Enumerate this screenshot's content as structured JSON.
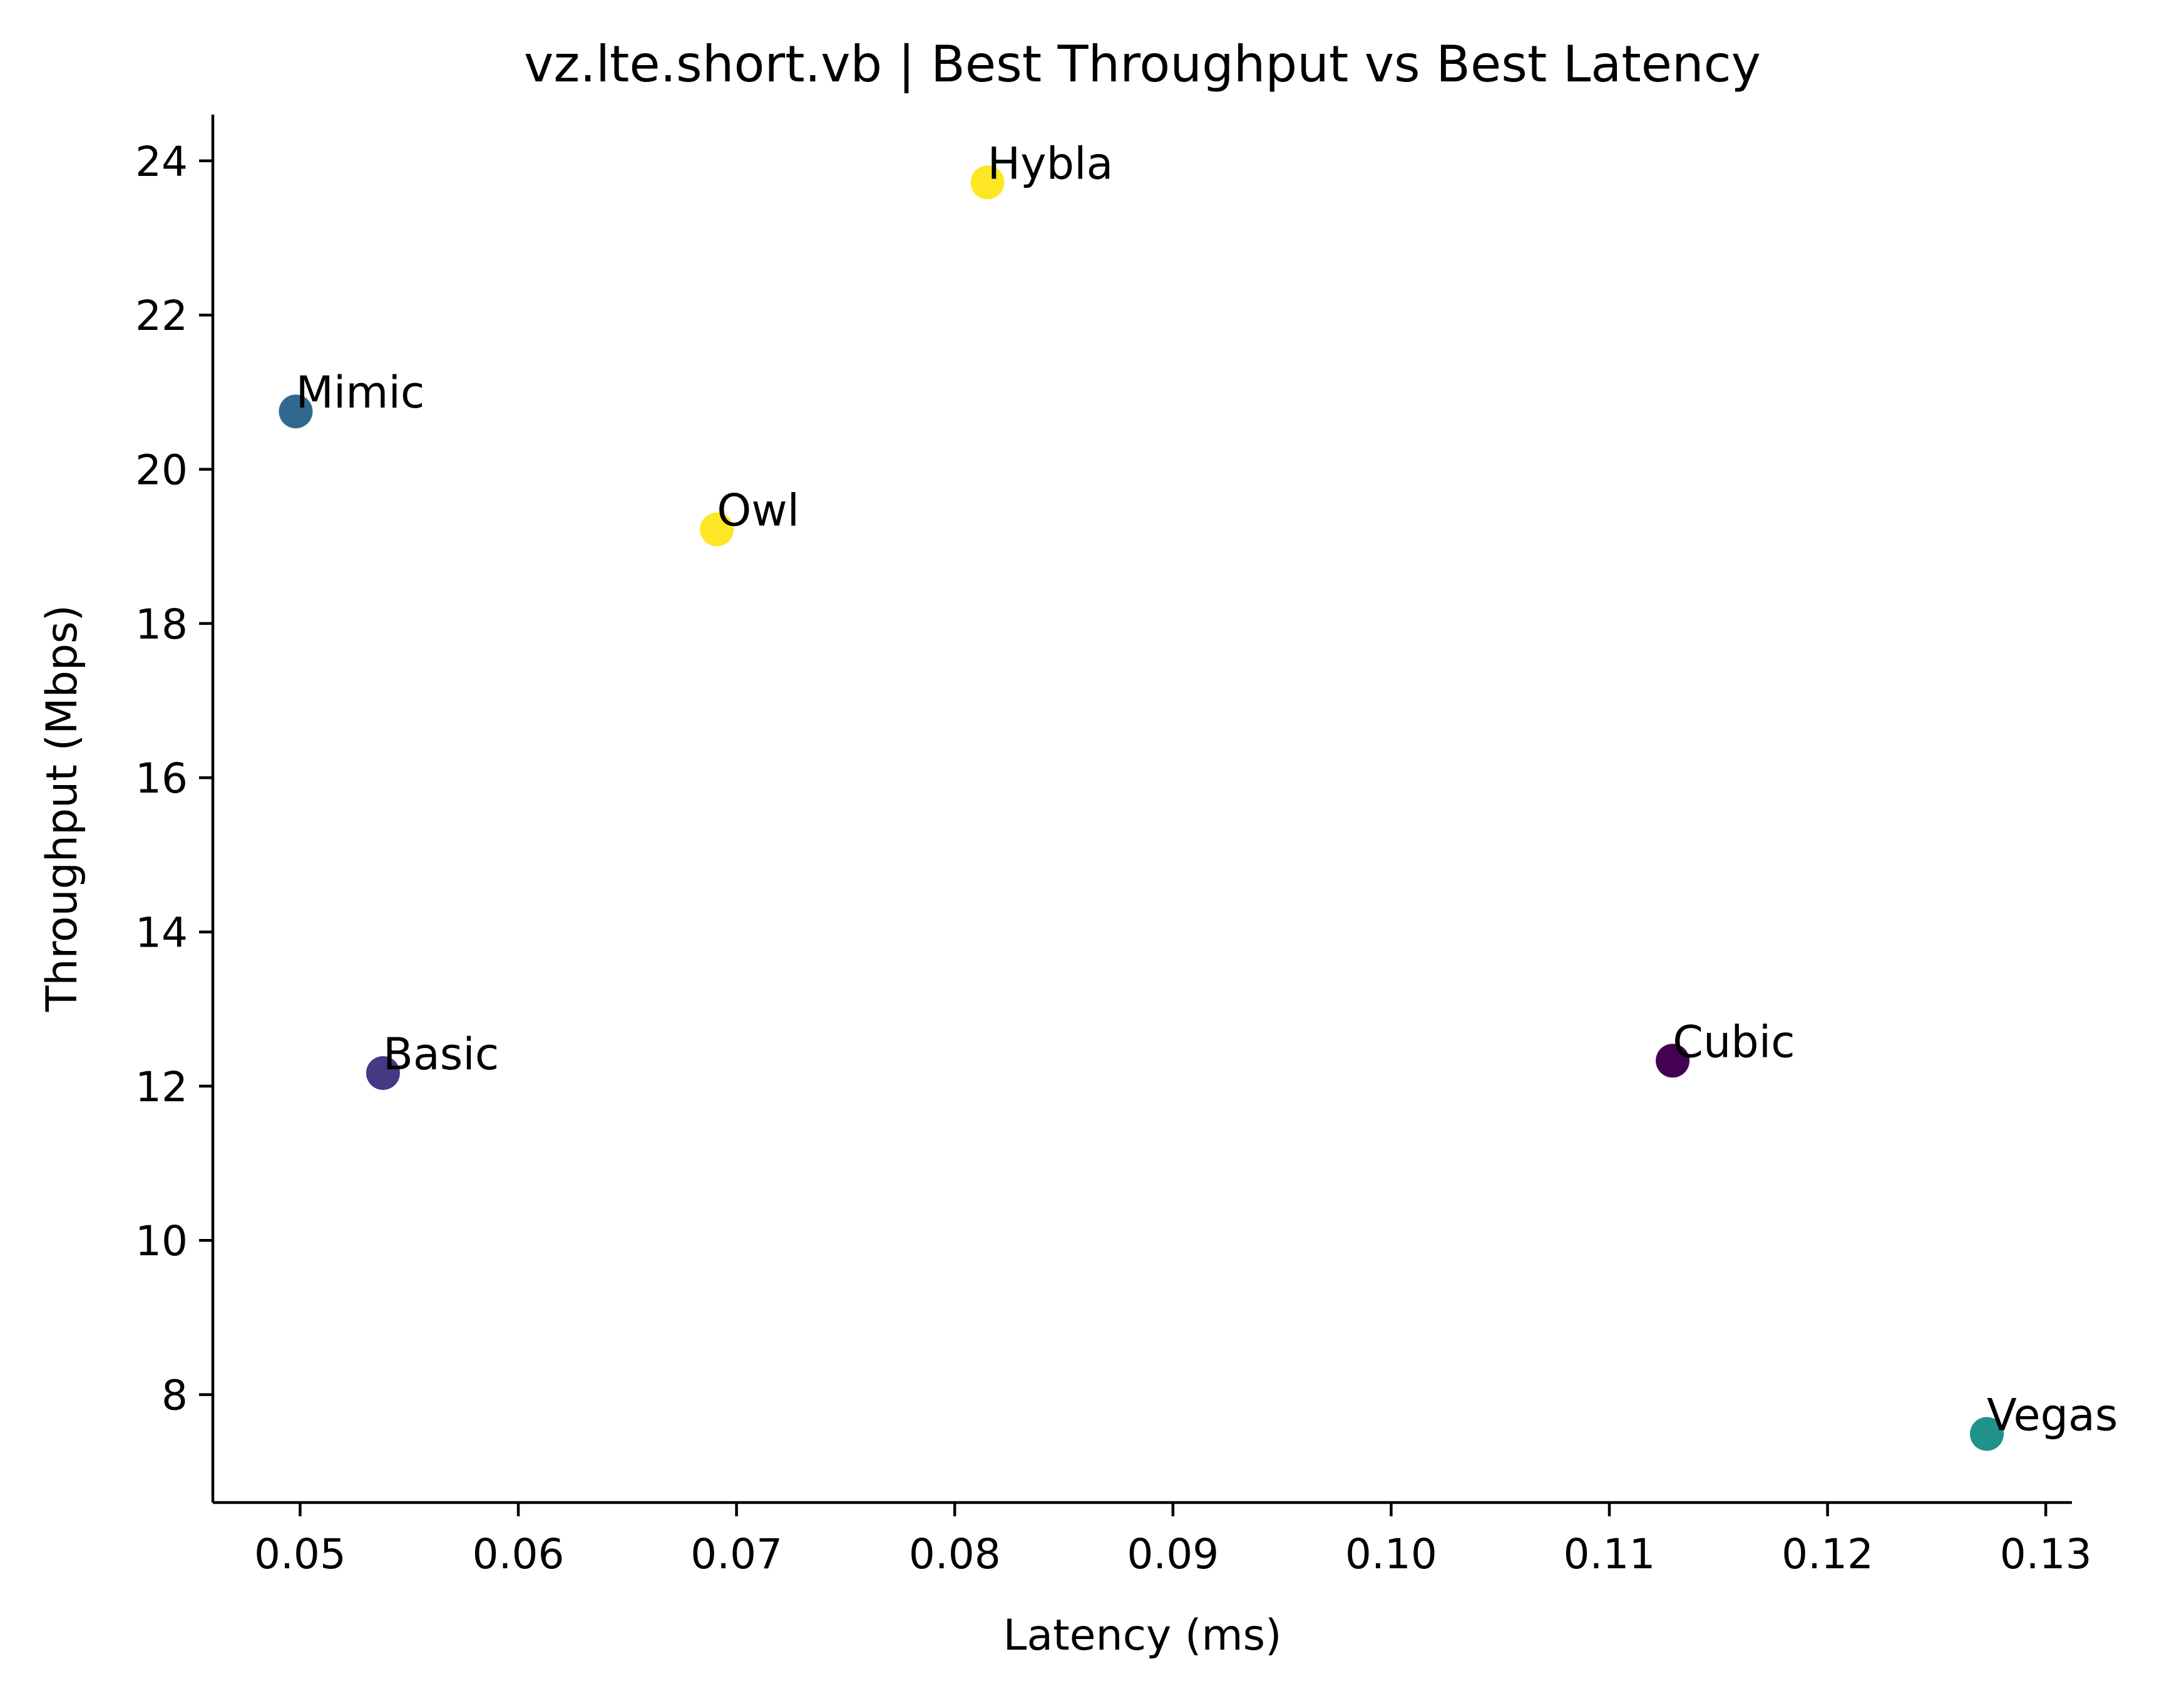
{
  "chart_data": {
    "type": "scatter",
    "title": "vz.lte.short.vb | Best Throughput vs Best Latency",
    "xlabel": "Latency (ms)",
    "ylabel": "Throughput (Mbps)",
    "xlim": [
      0.046,
      0.1312
    ],
    "ylim": [
      6.6,
      24.6
    ],
    "xticks": [
      {
        "value": 0.05,
        "label": "0.05"
      },
      {
        "value": 0.06,
        "label": "0.06"
      },
      {
        "value": 0.07,
        "label": "0.07"
      },
      {
        "value": 0.08,
        "label": "0.08"
      },
      {
        "value": 0.09,
        "label": "0.09"
      },
      {
        "value": 0.1,
        "label": "0.10"
      },
      {
        "value": 0.11,
        "label": "0.11"
      },
      {
        "value": 0.12,
        "label": "0.12"
      },
      {
        "value": 0.13,
        "label": "0.13"
      }
    ],
    "yticks": [
      {
        "value": 8,
        "label": "8"
      },
      {
        "value": 10,
        "label": "10"
      },
      {
        "value": 12,
        "label": "12"
      },
      {
        "value": 14,
        "label": "14"
      },
      {
        "value": 16,
        "label": "16"
      },
      {
        "value": 18,
        "label": "18"
      },
      {
        "value": 20,
        "label": "20"
      },
      {
        "value": 22,
        "label": "22"
      },
      {
        "value": 24,
        "label": "24"
      }
    ],
    "points": [
      {
        "label": "Hybla",
        "x": 0.0815,
        "y": 23.72,
        "color": "#fde725"
      },
      {
        "label": "Mimic",
        "x": 0.0498,
        "y": 20.75,
        "color": "#31688e"
      },
      {
        "label": "Owl",
        "x": 0.0691,
        "y": 19.22,
        "color": "#fde725"
      },
      {
        "label": "Basic",
        "x": 0.0538,
        "y": 12.17,
        "color": "#443983"
      },
      {
        "label": "Cubic",
        "x": 0.1129,
        "y": 12.33,
        "color": "#440154"
      },
      {
        "label": "Vegas",
        "x": 0.1273,
        "y": 7.49,
        "color": "#21918c"
      }
    ],
    "grid": false,
    "legend": "none"
  }
}
